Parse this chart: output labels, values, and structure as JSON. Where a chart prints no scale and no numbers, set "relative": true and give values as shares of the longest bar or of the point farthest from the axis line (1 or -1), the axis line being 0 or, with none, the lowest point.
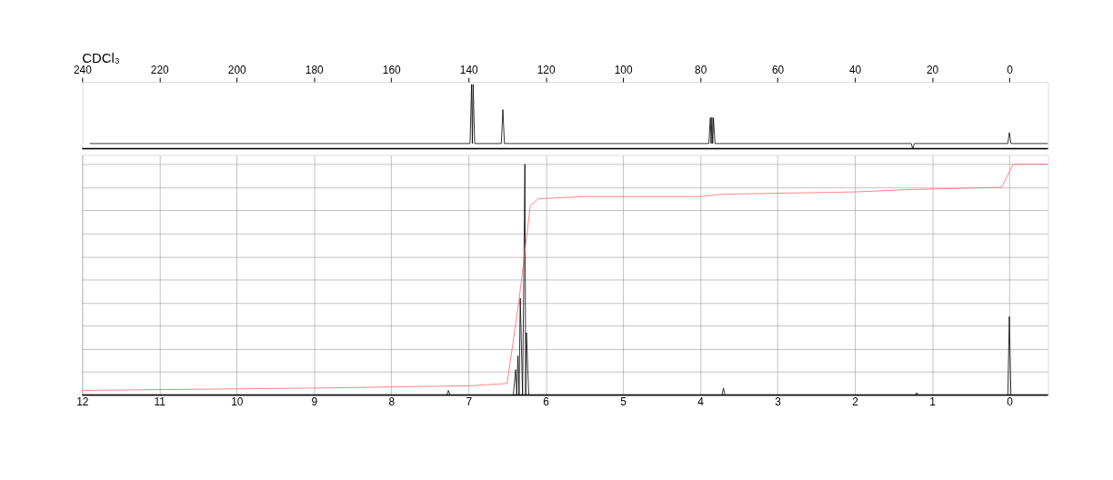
{
  "chart_data": [
    {
      "type": "line",
      "relative": true,
      "xlim": [
        240,
        -10
      ],
      "xticks": [
        240,
        220,
        200,
        180,
        160,
        140,
        120,
        100,
        80,
        60,
        40,
        20,
        0
      ],
      "tick_labels": "x",
      "grid": false,
      "legend": false,
      "annotations": [
        "CDCl₃"
      ],
      "series": [
        {
          "color": "#000000",
          "x": [
            238,
            139.6,
            139.2,
            139.0,
            138.8,
            138.4,
            131.5,
            131.1,
            130.7,
            77.8,
            77.4,
            77.2,
            77.0,
            76.8,
            76.6,
            76.2,
            25.4,
            25.0,
            24.6,
            0.4,
            0.0,
            -0.4,
            -10
          ],
          "values": [
            0.08,
            0.08,
            1,
            0.08,
            1,
            0.08,
            0.08,
            0.61,
            0.08,
            0.08,
            0.48,
            0.08,
            0.49,
            0.08,
            0.48,
            0.08,
            0.08,
            0,
            0.08,
            0.08,
            0.25,
            0.08,
            0.08
          ]
        }
      ]
    },
    {
      "type": "line",
      "relative": true,
      "xlim": [
        12,
        -0.5
      ],
      "xticks": [
        12,
        11,
        10,
        9,
        8,
        7,
        6,
        5,
        4,
        3,
        2,
        1,
        0
      ],
      "tick_labels": "x",
      "grid": true,
      "legend": false,
      "series": [
        {
          "color": "#000000",
          "x": [
            12,
            7.28,
            7.26,
            7.24,
            6.42,
            6.39,
            6.375,
            6.36,
            6.345,
            6.33,
            6.3,
            6.27,
            6.26,
            6.25,
            6.22,
            3.72,
            3.7,
            3.68,
            1.22,
            1.2,
            1.18,
            0.02,
            0.0,
            -0.02,
            -0.5
          ],
          "values": [
            0,
            0,
            0.02,
            0,
            0,
            0.11,
            0,
            0.17,
            0,
            0.42,
            0,
            1,
            0,
            0.27,
            0,
            0,
            0.03,
            0,
            0,
            0.01,
            0,
            0,
            0.34,
            0,
            0
          ]
        },
        {
          "color": "#ff6666",
          "x": [
            12,
            9,
            7,
            6.5,
            6.35,
            6.2,
            6.1,
            5.5,
            4,
            3.7,
            2,
            1.3,
            0.1,
            -0.05,
            -0.5
          ],
          "values": [
            0.02,
            0.03,
            0.04,
            0.05,
            0.4,
            0.82,
            0.85,
            0.86,
            0.86,
            0.87,
            0.88,
            0.89,
            0.9,
            1.0,
            1.0
          ]
        }
      ]
    }
  ]
}
